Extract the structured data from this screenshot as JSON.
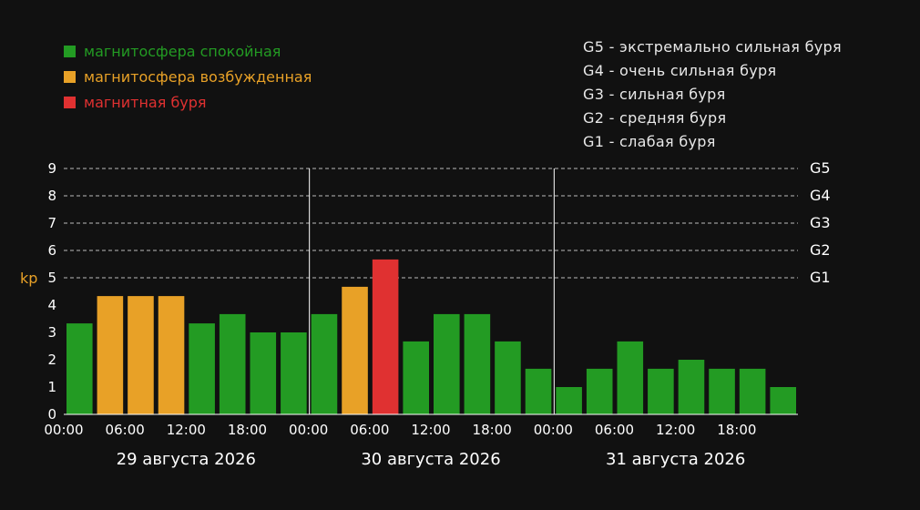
{
  "legend": {
    "quiet": {
      "label": "магнитосфера спокойная",
      "color": "#239b23"
    },
    "active": {
      "label": "магнитосфера возбужденная",
      "color": "#e8a127"
    },
    "storm": {
      "label": "магнитная буря",
      "color": "#e03131"
    }
  },
  "storm_levels": [
    "G5 - экстремально сильная буря",
    "G4 - очень сильная буря",
    "G3 - сильная буря",
    "G2 - средняя буря",
    "G1 - слабая буря"
  ],
  "chart_data": {
    "type": "bar",
    "ylabel": "kp",
    "ylim": [
      0,
      9
    ],
    "yticks": [
      "0",
      "1",
      "2",
      "3",
      "4",
      "5",
      "6",
      "7",
      "8",
      "9"
    ],
    "right_ticks": [
      {
        "value": 5,
        "label": "G1"
      },
      {
        "value": 6,
        "label": "G2"
      },
      {
        "value": 7,
        "label": "G3"
      },
      {
        "value": 8,
        "label": "G4"
      },
      {
        "value": 9,
        "label": "G5"
      }
    ],
    "grid": "dashed horizontal",
    "xticks": [
      "00:00",
      "06:00",
      "12:00",
      "18:00",
      "00:00",
      "06:00",
      "12:00",
      "18:00",
      "00:00",
      "06:00",
      "12:00",
      "18:00"
    ],
    "days": [
      "29 августа 2026",
      "30 августа 2026",
      "31 августа 2026"
    ],
    "values": [
      3.33,
      4.33,
      4.33,
      4.33,
      3.33,
      3.67,
      3.0,
      3.0,
      3.67,
      4.67,
      5.67,
      2.67,
      3.67,
      3.67,
      2.67,
      1.67,
      1.0,
      1.67,
      2.67,
      1.67,
      2.0,
      1.67,
      1.67,
      1.0
    ],
    "bar_status": [
      "quiet",
      "active",
      "active",
      "active",
      "quiet",
      "quiet",
      "quiet",
      "quiet",
      "quiet",
      "active",
      "storm",
      "quiet",
      "quiet",
      "quiet",
      "quiet",
      "quiet",
      "quiet",
      "quiet",
      "quiet",
      "quiet",
      "quiet",
      "quiet",
      "quiet",
      "quiet"
    ]
  }
}
